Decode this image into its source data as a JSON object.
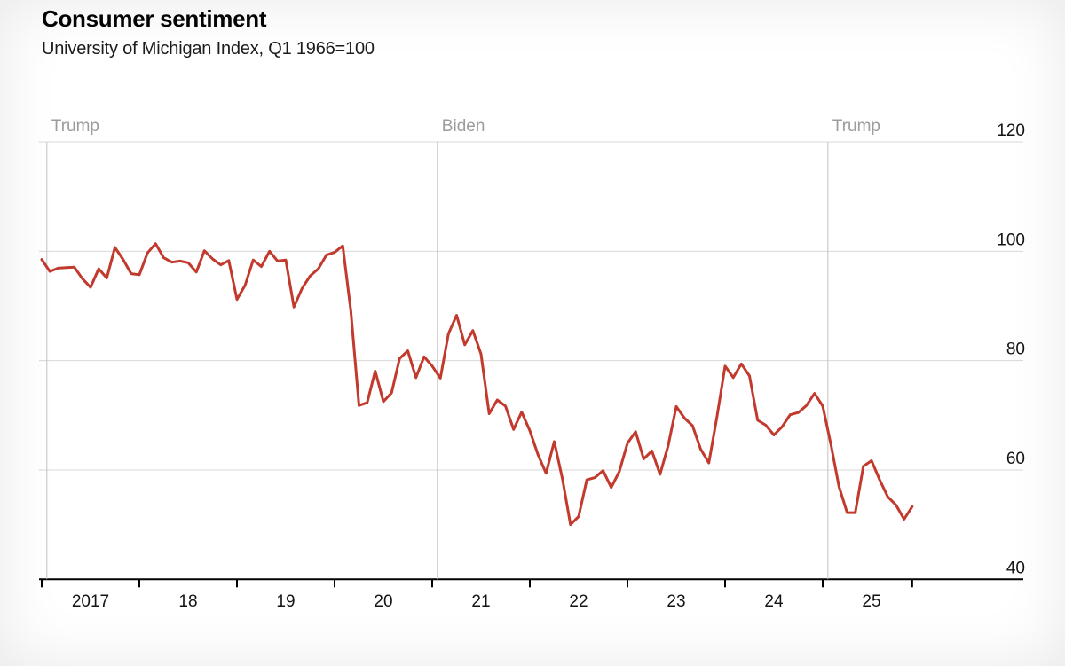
{
  "header": {
    "title": "Consumer sentiment",
    "subtitle": "University of Michigan Index, Q1 1966=100"
  },
  "chart_data": {
    "type": "line",
    "title": "Consumer sentiment",
    "subtitle": "University of Michigan Index, Q1 1966=100",
    "series_name": "University of Michigan Index of Consumer Sentiment",
    "frequency": "monthly",
    "x_start": "2017-01",
    "x_tick_labels": [
      "2017",
      "18",
      "19",
      "20",
      "21",
      "22",
      "23",
      "24",
      "25"
    ],
    "yticks": [
      120,
      100,
      80,
      60,
      40
    ],
    "ylim": [
      40,
      120
    ],
    "grid": "horizontal",
    "y_axis_side": "right",
    "legend": "none",
    "annotations": [
      {
        "label": "Trump",
        "start": "2017-01-20"
      },
      {
        "label": "Biden",
        "start": "2021-01-20"
      },
      {
        "label": "Trump",
        "start": "2025-01-20"
      }
    ],
    "values": [
      98.5,
      96.3,
      96.9,
      97.0,
      97.1,
      95.0,
      93.4,
      96.8,
      95.1,
      100.7,
      98.5,
      95.9,
      95.7,
      99.7,
      101.4,
      98.8,
      98.0,
      98.2,
      97.9,
      96.2,
      100.1,
      98.6,
      97.5,
      98.3,
      91.2,
      93.8,
      98.4,
      97.2,
      100.0,
      98.2,
      98.4,
      89.8,
      93.2,
      95.5,
      96.8,
      99.3,
      99.8,
      101.0,
      89.1,
      71.8,
      72.3,
      78.1,
      72.5,
      74.1,
      80.4,
      81.8,
      76.9,
      80.7,
      79.0,
      76.8,
      84.9,
      88.3,
      82.9,
      85.5,
      81.2,
      70.3,
      72.8,
      71.7,
      67.4,
      70.6,
      67.2,
      62.8,
      59.4,
      65.2,
      58.4,
      50.0,
      51.5,
      58.2,
      58.6,
      59.9,
      56.8,
      59.7,
      64.9,
      67.0,
      62.0,
      63.5,
      59.2,
      64.4,
      71.6,
      69.5,
      68.1,
      63.8,
      61.3,
      69.7,
      79.0,
      76.9,
      79.4,
      77.2,
      69.1,
      68.2,
      66.4,
      67.9,
      70.1,
      70.5,
      71.8,
      74.0,
      71.7,
      64.7,
      57.0,
      52.2,
      52.2,
      60.7,
      61.7,
      58.2,
      55.1,
      53.6,
      51.0,
      53.3
    ],
    "colors": {
      "line": "#c23a2d",
      "axis": "#000000",
      "grid": "#d9d9d9",
      "annotation_line": "#c2c2c2",
      "annotation_label": "#9c9c9c",
      "tick_label": "#141414"
    }
  }
}
